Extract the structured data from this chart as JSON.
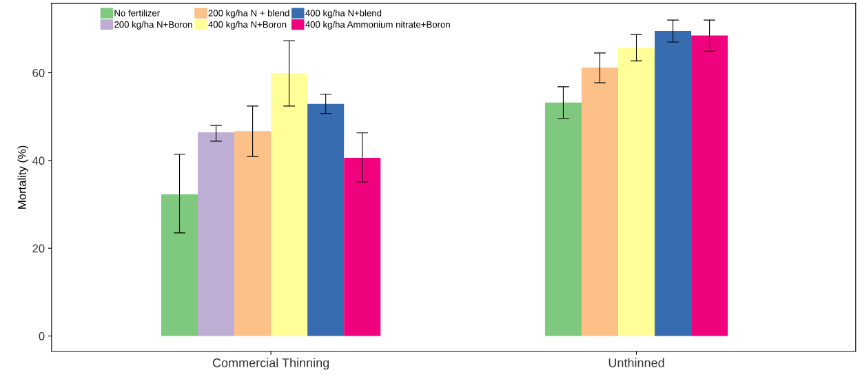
{
  "chart_data": {
    "type": "bar",
    "ylabel": "Mortality (%)",
    "categories": [
      "Commercial Thinning",
      "Unthinned"
    ],
    "series": [
      {
        "name": "No fertilizer",
        "color": "#7fc97f",
        "values": [
          32.3,
          53.2
        ],
        "errors": [
          [
            23.5,
            41.4
          ],
          [
            49.6,
            56.8
          ]
        ]
      },
      {
        "name": "200 kg/ha N+Boron",
        "color": "#beaed4",
        "values": [
          46.4,
          null
        ],
        "errors": [
          [
            44.4,
            48.0
          ],
          null
        ]
      },
      {
        "name": "200 kg/ha N + blend",
        "color": "#fdc086",
        "values": [
          46.7,
          61.2
        ],
        "errors": [
          [
            40.9,
            52.4
          ],
          [
            57.7,
            64.5
          ]
        ]
      },
      {
        "name": "400 kg/ha N+Boron",
        "color": "#ffff99",
        "values": [
          59.9,
          65.7
        ],
        "errors": [
          [
            52.4,
            67.3
          ],
          [
            62.7,
            68.7
          ]
        ]
      },
      {
        "name": "400 kg/ha N+blend",
        "color": "#386cb0",
        "values": [
          52.9,
          69.5
        ],
        "errors": [
          [
            50.7,
            55.1
          ],
          [
            67.0,
            72.0
          ]
        ]
      },
      {
        "name": "400 kg/ha Ammonium nitrate+Boron",
        "color": "#f0027f",
        "values": [
          40.6,
          68.5
        ],
        "errors": [
          [
            35.1,
            46.3
          ],
          [
            64.9,
            72.0
          ]
        ]
      }
    ],
    "ylim": [
      -3.5,
      75.8
    ],
    "yticks": [
      0,
      20,
      40,
      60
    ],
    "grid": false,
    "legend": "top left"
  }
}
